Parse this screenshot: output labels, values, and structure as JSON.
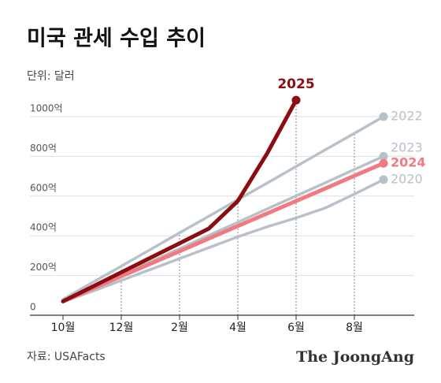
{
  "chart_data": {
    "type": "line",
    "title": "미국 관세 수입 추이",
    "subtitle": "단위: 달러",
    "source": "자료: USAFacts",
    "brand": "The JoongAng",
    "categories": [
      "10월",
      null,
      "12월",
      null,
      "2월",
      null,
      "4월",
      null,
      "6월",
      null,
      "8월",
      null
    ],
    "series": [
      {
        "name": "2022",
        "color": "#b8c1ca",
        "values": [
          80,
          164,
          247,
          331,
          415,
          498,
          582,
          665,
          749,
          833,
          916,
          1000
        ]
      },
      {
        "name": "2023",
        "color": "#b8c1ca",
        "values": [
          70,
          136,
          203,
          269,
          335,
          402,
          468,
          535,
          601,
          667,
          734,
          800
        ]
      },
      {
        "name": "2020",
        "color": "#b8c1ca",
        "values": [
          68,
          120,
          175,
          230,
          285,
          340,
          395,
          445,
          490,
          540,
          610,
          683
        ]
      },
      {
        "name": "2024",
        "color": "#f07a80",
        "values": [
          70,
          133,
          196,
          259,
          322,
          386,
          449,
          512,
          575,
          638,
          702,
          765
        ]
      },
      {
        "name": "2025",
        "color": "#8b0d12",
        "values": [
          70,
          143,
          216,
          289,
          362,
          436,
          575,
          813,
          1083,
          null,
          null,
          null
        ]
      }
    ],
    "ylim": [
      0,
      1000
    ],
    "yticks": [
      0,
      {
        "value": 200,
        "label": "200억"
      },
      {
        "value": 400,
        "label": "400억"
      },
      {
        "value": 600,
        "label": "600억"
      },
      {
        "value": 800,
        "label": "800억"
      },
      {
        "value": 1000,
        "label": "1000억"
      }
    ],
    "grid": true
  }
}
